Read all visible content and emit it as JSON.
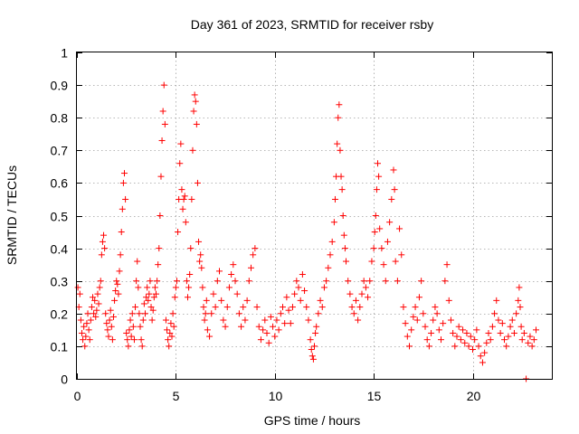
{
  "chart_data": {
    "type": "scatter",
    "title": "Day 361 of 2023, SRMTID for receiver rsby",
    "xlabel": "GPS time / hours",
    "ylabel": "SRMTID / TECUs",
    "xlim": [
      0,
      24
    ],
    "ylim": [
      0,
      1
    ],
    "x_ticks": [
      0,
      5,
      10,
      15,
      20
    ],
    "x_tick_labels": [
      "0",
      "5",
      "10",
      "15",
      "20"
    ],
    "y_ticks": [
      0,
      0.1,
      0.2,
      0.3,
      0.4,
      0.5,
      0.6,
      0.7,
      0.8,
      0.9,
      1
    ],
    "y_tick_labels": [
      "0",
      "0.1",
      "0.2",
      "0.3",
      "0.4",
      "0.5",
      "0.6",
      "0.7",
      "0.8",
      "0.9",
      "1"
    ],
    "grid": true,
    "marker": "+",
    "color": "#ff0000",
    "series": [
      {
        "name": "SRMTID",
        "points": [
          [
            0.05,
            0.28
          ],
          [
            0.1,
            0.22
          ],
          [
            0.15,
            0.26
          ],
          [
            0.2,
            0.18
          ],
          [
            0.25,
            0.14
          ],
          [
            0.3,
            0.12
          ],
          [
            0.35,
            0.16
          ],
          [
            0.4,
            0.1
          ],
          [
            0.45,
            0.13
          ],
          [
            0.5,
            0.17
          ],
          [
            0.55,
            0.2
          ],
          [
            0.6,
            0.15
          ],
          [
            0.65,
            0.12
          ],
          [
            0.7,
            0.18
          ],
          [
            0.75,
            0.22
          ],
          [
            0.8,
            0.25
          ],
          [
            0.85,
            0.2
          ],
          [
            0.9,
            0.24
          ],
          [
            0.95,
            0.19
          ],
          [
            1.0,
            0.21
          ],
          [
            1.05,
            0.26
          ],
          [
            1.1,
            0.23
          ],
          [
            1.15,
            0.28
          ],
          [
            1.2,
            0.3
          ],
          [
            1.25,
            0.38
          ],
          [
            1.3,
            0.42
          ],
          [
            1.35,
            0.44
          ],
          [
            1.4,
            0.4
          ],
          [
            1.45,
            0.2
          ],
          [
            1.5,
            0.17
          ],
          [
            1.55,
            0.15
          ],
          [
            1.6,
            0.13
          ],
          [
            1.65,
            0.18
          ],
          [
            1.7,
            0.21
          ],
          [
            1.75,
            0.16
          ],
          [
            1.8,
            0.12
          ],
          [
            1.85,
            0.19
          ],
          [
            1.9,
            0.24
          ],
          [
            1.95,
            0.27
          ],
          [
            2.0,
            0.3
          ],
          [
            2.05,
            0.29
          ],
          [
            2.1,
            0.26
          ],
          [
            2.15,
            0.33
          ],
          [
            2.2,
            0.38
          ],
          [
            2.25,
            0.45
          ],
          [
            2.3,
            0.52
          ],
          [
            2.35,
            0.6
          ],
          [
            2.4,
            0.63
          ],
          [
            2.45,
            0.55
          ],
          [
            2.5,
            0.14
          ],
          [
            2.55,
            0.12
          ],
          [
            2.6,
            0.1
          ],
          [
            2.65,
            0.15
          ],
          [
            2.7,
            0.18
          ],
          [
            2.75,
            0.13
          ],
          [
            2.8,
            0.2
          ],
          [
            2.85,
            0.16
          ],
          [
            2.9,
            0.12
          ],
          [
            2.95,
            0.22
          ],
          [
            3.0,
            0.3
          ],
          [
            3.05,
            0.36
          ],
          [
            3.1,
            0.28
          ],
          [
            3.15,
            0.2
          ],
          [
            3.2,
            0.16
          ],
          [
            3.25,
            0.12
          ],
          [
            3.3,
            0.1
          ],
          [
            3.35,
            0.18
          ],
          [
            3.4,
            0.23
          ],
          [
            3.45,
            0.2
          ],
          [
            3.5,
            0.25
          ],
          [
            3.55,
            0.28
          ],
          [
            3.6,
            0.24
          ],
          [
            3.65,
            0.26
          ],
          [
            3.7,
            0.3
          ],
          [
            3.75,
            0.22
          ],
          [
            3.8,
            0.18
          ],
          [
            3.85,
            0.21
          ],
          [
            3.9,
            0.25
          ],
          [
            3.95,
            0.28
          ],
          [
            4.0,
            0.26
          ],
          [
            4.05,
            0.3
          ],
          [
            4.1,
            0.35
          ],
          [
            4.15,
            0.4
          ],
          [
            4.2,
            0.5
          ],
          [
            4.25,
            0.62
          ],
          [
            4.3,
            0.73
          ],
          [
            4.35,
            0.82
          ],
          [
            4.4,
            0.9
          ],
          [
            4.45,
            0.78
          ],
          [
            4.5,
            0.18
          ],
          [
            4.55,
            0.15
          ],
          [
            4.6,
            0.12
          ],
          [
            4.65,
            0.1
          ],
          [
            4.7,
            0.14
          ],
          [
            4.75,
            0.17
          ],
          [
            4.8,
            0.13
          ],
          [
            4.85,
            0.2
          ],
          [
            4.9,
            0.16
          ],
          [
            4.95,
            0.25
          ],
          [
            5.0,
            0.28
          ],
          [
            5.05,
            0.3
          ],
          [
            5.1,
            0.45
          ],
          [
            5.15,
            0.55
          ],
          [
            5.2,
            0.66
          ],
          [
            5.25,
            0.72
          ],
          [
            5.3,
            0.58
          ],
          [
            5.35,
            0.52
          ],
          [
            5.4,
            0.55
          ],
          [
            5.45,
            0.56
          ],
          [
            5.5,
            0.48
          ],
          [
            5.55,
            0.3
          ],
          [
            5.6,
            0.25
          ],
          [
            5.65,
            0.28
          ],
          [
            5.7,
            0.32
          ],
          [
            5.75,
            0.4
          ],
          [
            5.8,
            0.55
          ],
          [
            5.85,
            0.7
          ],
          [
            5.9,
            0.82
          ],
          [
            5.95,
            0.87
          ],
          [
            6.0,
            0.85
          ],
          [
            6.05,
            0.78
          ],
          [
            6.1,
            0.6
          ],
          [
            6.15,
            0.42
          ],
          [
            6.2,
            0.36
          ],
          [
            6.25,
            0.38
          ],
          [
            6.3,
            0.34
          ],
          [
            6.35,
            0.28
          ],
          [
            6.4,
            0.22
          ],
          [
            6.45,
            0.18
          ],
          [
            6.5,
            0.2
          ],
          [
            6.55,
            0.24
          ],
          [
            6.6,
            0.15
          ],
          [
            6.7,
            0.13
          ],
          [
            6.8,
            0.2
          ],
          [
            6.9,
            0.26
          ],
          [
            7.0,
            0.22
          ],
          [
            7.1,
            0.3
          ],
          [
            7.2,
            0.33
          ],
          [
            7.3,
            0.24
          ],
          [
            7.4,
            0.18
          ],
          [
            7.5,
            0.16
          ],
          [
            7.6,
            0.22
          ],
          [
            7.7,
            0.28
          ],
          [
            7.8,
            0.32
          ],
          [
            7.9,
            0.35
          ],
          [
            8.0,
            0.3
          ],
          [
            8.1,
            0.26
          ],
          [
            8.2,
            0.2
          ],
          [
            8.3,
            0.16
          ],
          [
            8.4,
            0.22
          ],
          [
            8.5,
            0.18
          ],
          [
            8.6,
            0.24
          ],
          [
            8.7,
            0.3
          ],
          [
            8.8,
            0.34
          ],
          [
            8.9,
            0.38
          ],
          [
            9.0,
            0.4
          ],
          [
            9.1,
            0.22
          ],
          [
            9.2,
            0.16
          ],
          [
            9.3,
            0.12
          ],
          [
            9.4,
            0.15
          ],
          [
            9.5,
            0.18
          ],
          [
            9.6,
            0.14
          ],
          [
            9.7,
            0.11
          ],
          [
            9.8,
            0.19
          ],
          [
            9.9,
            0.16
          ],
          [
            10.0,
            0.13
          ],
          [
            10.1,
            0.18
          ],
          [
            10.2,
            0.15
          ],
          [
            10.3,
            0.2
          ],
          [
            10.4,
            0.22
          ],
          [
            10.5,
            0.17
          ],
          [
            10.6,
            0.25
          ],
          [
            10.7,
            0.21
          ],
          [
            10.8,
            0.17
          ],
          [
            10.9,
            0.22
          ],
          [
            11.0,
            0.26
          ],
          [
            11.1,
            0.3
          ],
          [
            11.2,
            0.28
          ],
          [
            11.3,
            0.24
          ],
          [
            11.4,
            0.32
          ],
          [
            11.5,
            0.27
          ],
          [
            11.6,
            0.22
          ],
          [
            11.7,
            0.18
          ],
          [
            11.8,
            0.12
          ],
          [
            11.85,
            0.09
          ],
          [
            11.9,
            0.07
          ],
          [
            11.95,
            0.06
          ],
          [
            12.0,
            0.1
          ],
          [
            12.05,
            0.14
          ],
          [
            12.1,
            0.16
          ],
          [
            12.2,
            0.2
          ],
          [
            12.3,
            0.24
          ],
          [
            12.4,
            0.22
          ],
          [
            12.5,
            0.28
          ],
          [
            12.6,
            0.3
          ],
          [
            12.7,
            0.34
          ],
          [
            12.8,
            0.38
          ],
          [
            12.9,
            0.42
          ],
          [
            13.0,
            0.48
          ],
          [
            13.05,
            0.55
          ],
          [
            13.1,
            0.62
          ],
          [
            13.15,
            0.72
          ],
          [
            13.2,
            0.8
          ],
          [
            13.25,
            0.84
          ],
          [
            13.3,
            0.7
          ],
          [
            13.35,
            0.62
          ],
          [
            13.4,
            0.58
          ],
          [
            13.45,
            0.5
          ],
          [
            13.5,
            0.44
          ],
          [
            13.55,
            0.4
          ],
          [
            13.6,
            0.36
          ],
          [
            13.7,
            0.3
          ],
          [
            13.8,
            0.26
          ],
          [
            13.9,
            0.22
          ],
          [
            14.0,
            0.2
          ],
          [
            14.1,
            0.24
          ],
          [
            14.2,
            0.18
          ],
          [
            14.3,
            0.22
          ],
          [
            14.4,
            0.26
          ],
          [
            14.5,
            0.3
          ],
          [
            14.6,
            0.28
          ],
          [
            14.7,
            0.25
          ],
          [
            14.8,
            0.3
          ],
          [
            14.9,
            0.36
          ],
          [
            15.0,
            0.4
          ],
          [
            15.05,
            0.45
          ],
          [
            15.1,
            0.5
          ],
          [
            15.15,
            0.58
          ],
          [
            15.2,
            0.66
          ],
          [
            15.25,
            0.62
          ],
          [
            15.3,
            0.46
          ],
          [
            15.4,
            0.4
          ],
          [
            15.5,
            0.35
          ],
          [
            15.6,
            0.3
          ],
          [
            15.7,
            0.42
          ],
          [
            15.8,
            0.48
          ],
          [
            15.9,
            0.55
          ],
          [
            16.0,
            0.64
          ],
          [
            16.05,
            0.58
          ],
          [
            16.1,
            0.36
          ],
          [
            16.2,
            0.3
          ],
          [
            16.3,
            0.46
          ],
          [
            16.4,
            0.38
          ],
          [
            16.5,
            0.22
          ],
          [
            16.6,
            0.17
          ],
          [
            16.7,
            0.13
          ],
          [
            16.8,
            0.1
          ],
          [
            16.9,
            0.15
          ],
          [
            17.0,
            0.19
          ],
          [
            17.1,
            0.22
          ],
          [
            17.2,
            0.18
          ],
          [
            17.3,
            0.25
          ],
          [
            17.4,
            0.3
          ],
          [
            17.5,
            0.2
          ],
          [
            17.6,
            0.16
          ],
          [
            17.7,
            0.12
          ],
          [
            17.8,
            0.1
          ],
          [
            17.9,
            0.14
          ],
          [
            18.0,
            0.18
          ],
          [
            18.1,
            0.22
          ],
          [
            18.2,
            0.2
          ],
          [
            18.3,
            0.15
          ],
          [
            18.4,
            0.12
          ],
          [
            18.5,
            0.17
          ],
          [
            18.6,
            0.3
          ],
          [
            18.7,
            0.35
          ],
          [
            18.8,
            0.24
          ],
          [
            18.9,
            0.18
          ],
          [
            19.0,
            0.14
          ],
          [
            19.1,
            0.1
          ],
          [
            19.2,
            0.13
          ],
          [
            19.3,
            0.16
          ],
          [
            19.4,
            0.12
          ],
          [
            19.5,
            0.15
          ],
          [
            19.6,
            0.11
          ],
          [
            19.7,
            0.14
          ],
          [
            19.8,
            0.1
          ],
          [
            19.9,
            0.13
          ],
          [
            20.0,
            0.09
          ],
          [
            20.1,
            0.12
          ],
          [
            20.2,
            0.15
          ],
          [
            20.3,
            0.1
          ],
          [
            20.4,
            0.07
          ],
          [
            20.5,
            0.05
          ],
          [
            20.6,
            0.08
          ],
          [
            20.7,
            0.11
          ],
          [
            20.8,
            0.14
          ],
          [
            20.9,
            0.12
          ],
          [
            21.0,
            0.16
          ],
          [
            21.1,
            0.2
          ],
          [
            21.2,
            0.24
          ],
          [
            21.3,
            0.18
          ],
          [
            21.4,
            0.14
          ],
          [
            21.5,
            0.17
          ],
          [
            21.6,
            0.12
          ],
          [
            21.7,
            0.1
          ],
          [
            21.8,
            0.13
          ],
          [
            21.9,
            0.16
          ],
          [
            22.0,
            0.18
          ],
          [
            22.1,
            0.14
          ],
          [
            22.2,
            0.2
          ],
          [
            22.3,
            0.24
          ],
          [
            22.35,
            0.28
          ],
          [
            22.4,
            0.22
          ],
          [
            22.45,
            0.16
          ],
          [
            22.5,
            0.12
          ],
          [
            22.6,
            0.14
          ],
          [
            22.7,
            0.0
          ],
          [
            22.8,
            0.11
          ],
          [
            22.9,
            0.13
          ],
          [
            23.0,
            0.1
          ],
          [
            23.1,
            0.12
          ],
          [
            23.2,
            0.15
          ]
        ]
      }
    ]
  }
}
